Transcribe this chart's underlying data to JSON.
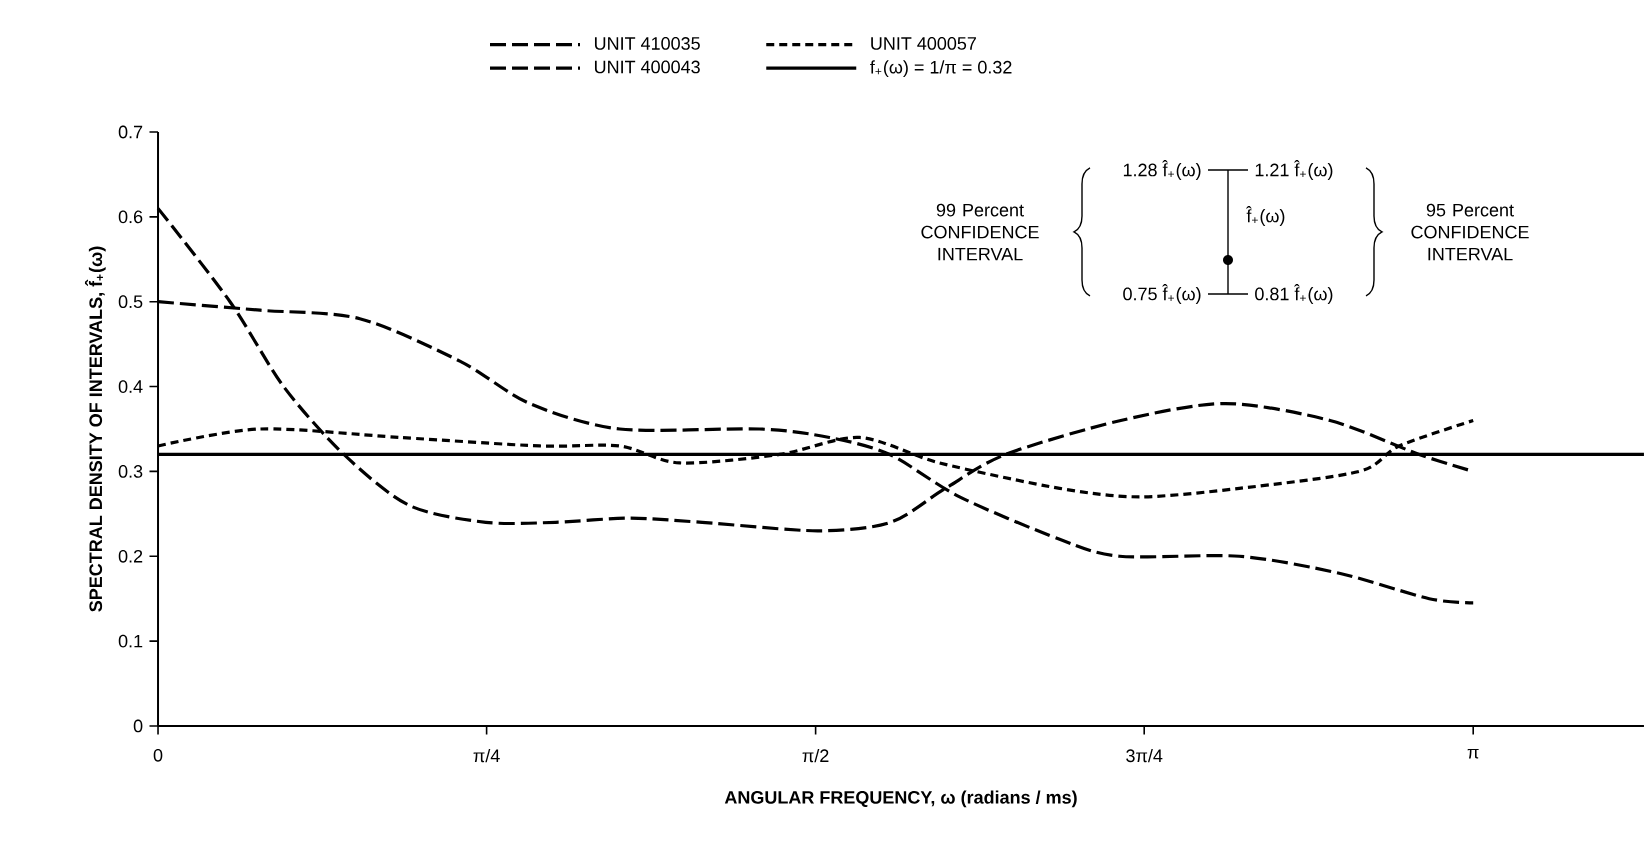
{
  "chart_data": {
    "type": "line",
    "xlabel": "ANGULAR FREQUENCY,  ω  (radians / ms)",
    "ylabel": "SPECTRAL DENSITY OF INTERVALS,  f̂$_{+}$(ω)",
    "xlim": [
      0,
      3.55
    ],
    "ylim": [
      0,
      0.7
    ],
    "xticks": [
      0,
      {
        "value": 0.785,
        "label": "π/4"
      },
      {
        "value": 1.571,
        "label": "π/2"
      },
      {
        "value": 2.356,
        "label": "3π/4"
      },
      {
        "value": 3.142,
        "label": "π"
      }
    ],
    "yticks": [
      0,
      0.1,
      0.2,
      0.3,
      0.4,
      0.5,
      0.6,
      0.7
    ],
    "legend": "top",
    "grid": false,
    "marker": "none",
    "series": [
      {
        "name": "UNIT 410035",
        "color": "#000000",
        "line_style": "dashed",
        "x": [
          0,
          0.172,
          0.3,
          0.444,
          0.6,
          0.783,
          0.95,
          1.127,
          1.3,
          1.576,
          1.75,
          1.881,
          2.025,
          2.3,
          2.55,
          2.8,
          3.013,
          3.142
        ],
        "values": [
          0.61,
          0.5,
          0.4,
          0.32,
          0.26,
          0.24,
          0.24,
          0.245,
          0.24,
          0.23,
          0.24,
          0.28,
          0.32,
          0.36,
          0.38,
          0.36,
          0.32,
          0.3
        ]
      },
      {
        "name": "UNIT 400057",
        "color": "#000000",
        "line_style": "dotted",
        "x": [
          0,
          0.244,
          0.578,
          0.912,
          1.103,
          1.246,
          1.485,
          1.676,
          1.867,
          2.154,
          2.345,
          2.583,
          2.87,
          2.965,
          3.142
        ],
        "values": [
          0.33,
          0.35,
          0.34,
          0.33,
          0.33,
          0.31,
          0.32,
          0.34,
          0.31,
          0.28,
          0.27,
          0.28,
          0.3,
          0.33,
          0.36
        ]
      },
      {
        "name": "UNIT 400043",
        "color": "#000000",
        "line_style": "dashed",
        "x": [
          0,
          0.244,
          0.482,
          0.721,
          0.888,
          1.103,
          1.437,
          1.604,
          1.748,
          1.915,
          2.154,
          2.297,
          2.583,
          2.822,
          3.037,
          3.142
        ],
        "values": [
          0.5,
          0.49,
          0.48,
          0.43,
          0.38,
          0.35,
          0.35,
          0.34,
          0.32,
          0.27,
          0.22,
          0.2,
          0.2,
          0.18,
          0.15,
          0.145
        ]
      },
      {
        "name": "f$_{+}$(ω) = 1/π = 0.32",
        "color": "#000000",
        "line_style": "solid",
        "x": [
          0,
          3.55
        ],
        "values": [
          0.32,
          0.32
        ]
      }
    ],
    "annotations": [
      "1.28 f̂$_{+}$(ω)",
      "1.21  f̂$_{+}$(ω)",
      "f̂$_{+}$(ω)",
      "0.75 f̂$_{+}$(ω)",
      "0.81  f̂$_{+}$(ω)",
      "99 Percent CONFIDENCE INTERVAL",
      "95 Percent CONFIDENCE INTERVAL"
    ]
  }
}
